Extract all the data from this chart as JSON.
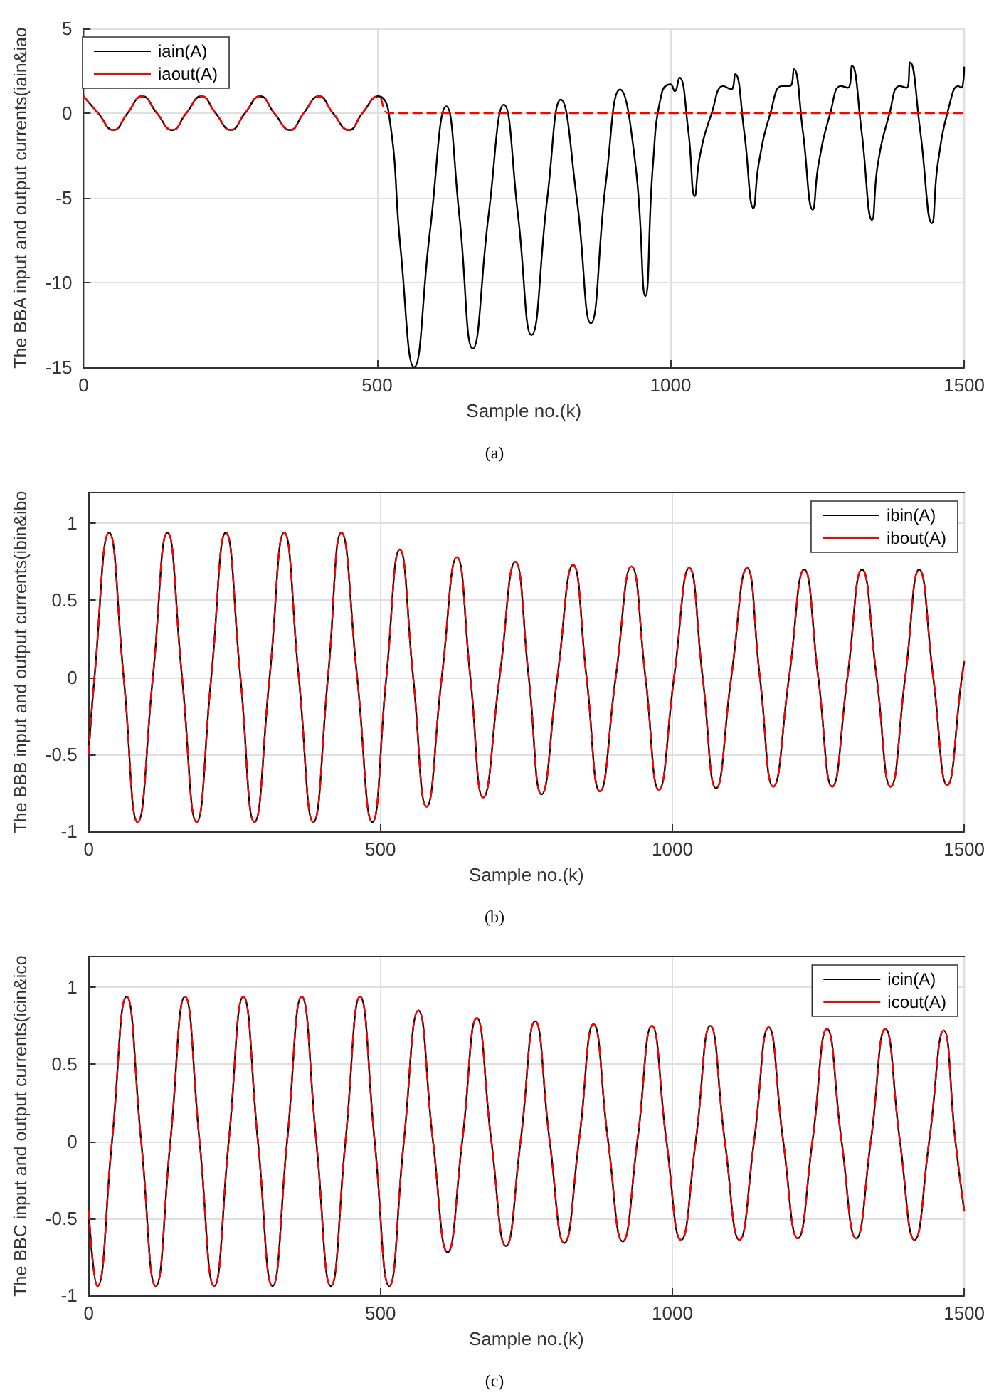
{
  "chart_data": [
    {
      "type": "line",
      "xlabel": "Sample no.(k)",
      "ylabel": "The BBA input and output currents(iain&iao",
      "annotations": [
        "(a)"
      ],
      "xlim": [
        0,
        1500
      ],
      "xticks": [
        0,
        500,
        1000,
        1500
      ],
      "ylim": [
        -15,
        5
      ],
      "yticks": [
        -15,
        -10,
        -5,
        0,
        5
      ],
      "grid": true,
      "legend": "top left",
      "marker": "none",
      "series": [
        {
          "name": "iain(A)",
          "color": "#000000",
          "line_style": "solid",
          "x": [
            0,
            25,
            51,
            75,
            100,
            125,
            151,
            175,
            201,
            225,
            251,
            275,
            301,
            325,
            352,
            375,
            401,
            425,
            452,
            475,
            502,
            520,
            540,
            563,
            590,
            618,
            640,
            663,
            690,
            716,
            740,
            763,
            790,
            813,
            840,
            864,
            890,
            914,
            940,
            957,
            970,
            985,
            1000,
            1007,
            1015,
            1030,
            1041,
            1050,
            1070,
            1090,
            1103,
            1110,
            1125,
            1141,
            1150,
            1170,
            1190,
            1203,
            1210,
            1225,
            1242,
            1252,
            1272,
            1290,
            1302,
            1309,
            1325,
            1343,
            1353,
            1373,
            1390,
            1402,
            1408,
            1425,
            1445,
            1455,
            1475,
            1490,
            1495,
            1500
          ],
          "values": [
            1,
            0,
            -1,
            0,
            1,
            0,
            -1,
            0,
            1,
            0,
            -1,
            0,
            1,
            0,
            -1,
            0,
            1,
            0,
            -1,
            0,
            1,
            0,
            -8,
            -15,
            -7,
            0.4,
            -6,
            -13.9,
            -6,
            0.5,
            -6,
            -13.1,
            -5,
            0.8,
            -5,
            -12.4,
            -4,
            1.4,
            -3,
            -10.8,
            -3,
            1.2,
            1.7,
            1.3,
            2.1,
            -1,
            -4.9,
            -2.5,
            0,
            1.6,
            1.4,
            2.3,
            -1,
            -5.6,
            -3,
            0,
            1.6,
            1.6,
            2.6,
            -1,
            -5.7,
            -3,
            0,
            1.6,
            1.5,
            2.8,
            -1,
            -6.3,
            -3,
            0,
            1.6,
            1.5,
            3.0,
            -1,
            -6.5,
            -3,
            0.5,
            1.6,
            1.5,
            2.7
          ]
        },
        {
          "name": "iaout(A)",
          "color": "#ff0000",
          "line_style": "dashed",
          "x": [
            0,
            25,
            51,
            75,
            100,
            125,
            151,
            175,
            201,
            225,
            251,
            275,
            301,
            325,
            352,
            375,
            401,
            425,
            452,
            475,
            502,
            520,
            600,
            700,
            800,
            900,
            1000,
            1100,
            1200,
            1300,
            1400,
            1500
          ],
          "values": [
            1,
            0,
            -1,
            0,
            1,
            0,
            -1,
            0,
            1,
            0,
            -1,
            0,
            1,
            0,
            -1,
            0,
            1,
            0,
            -1,
            0,
            1,
            0,
            0,
            0,
            0,
            0,
            0,
            0,
            0,
            0,
            0,
            0
          ]
        }
      ]
    },
    {
      "type": "line",
      "xlabel": "Sample no.(k)",
      "ylabel": "The BBB input and output currents(ibin&ibo",
      "annotations": [
        "(b)"
      ],
      "xlim": [
        0,
        1500
      ],
      "xticks": [
        0,
        500,
        1000,
        1500
      ],
      "ylim": [
        -1,
        1.2
      ],
      "yticks": [
        -1,
        -0.5,
        0,
        0.5,
        1
      ],
      "grid": true,
      "legend": "top right",
      "marker": "none",
      "series": [
        {
          "name": "ibin(A)",
          "color": "#000000",
          "line_style": "solid",
          "x": [
            0,
            10,
            35,
            60,
            84,
            110,
            135,
            160,
            185,
            210,
            235,
            260,
            284,
            310,
            335,
            360,
            385,
            410,
            433,
            460,
            486,
            510,
            533,
            556,
            579,
            605,
            631,
            654,
            676,
            704,
            731,
            754,
            776,
            803,
            830,
            853,
            876,
            903,
            930,
            954,
            977,
            1003,
            1029,
            1052,
            1075,
            1101,
            1128,
            1150,
            1173,
            1200,
            1226,
            1250,
            1274,
            1300,
            1325,
            1350,
            1374,
            1399,
            1423,
            1447,
            1471,
            1496,
            1500
          ],
          "values": [
            -0.5,
            0,
            0.94,
            0,
            -0.94,
            0,
            0.94,
            0,
            -0.94,
            0,
            0.94,
            0,
            -0.94,
            0,
            0.94,
            0,
            -0.94,
            0,
            0.94,
            0,
            -0.94,
            0,
            0.83,
            0,
            -0.84,
            0,
            0.78,
            0,
            -0.78,
            0,
            0.75,
            0,
            -0.76,
            0,
            0.73,
            0,
            -0.74,
            0,
            0.72,
            0,
            -0.73,
            0,
            0.71,
            0,
            -0.72,
            0,
            0.71,
            0,
            -0.71,
            0,
            0.7,
            0,
            -0.71,
            0,
            0.7,
            0,
            -0.71,
            0,
            0.7,
            0,
            -0.7,
            0,
            0.1
          ]
        },
        {
          "name": "ibout(A)",
          "color": "#ff0000",
          "line_style": "dashed",
          "x": [
            0,
            10,
            35,
            60,
            84,
            110,
            135,
            160,
            185,
            210,
            235,
            260,
            284,
            310,
            335,
            360,
            385,
            410,
            433,
            460,
            486,
            510,
            533,
            556,
            579,
            605,
            631,
            654,
            676,
            704,
            731,
            754,
            776,
            803,
            830,
            853,
            876,
            903,
            930,
            954,
            977,
            1003,
            1029,
            1052,
            1075,
            1101,
            1128,
            1150,
            1173,
            1200,
            1226,
            1250,
            1274,
            1300,
            1325,
            1350,
            1374,
            1399,
            1423,
            1447,
            1471,
            1496,
            1500
          ],
          "values": [
            -0.5,
            0,
            0.94,
            0,
            -0.94,
            0,
            0.94,
            0,
            -0.94,
            0,
            0.94,
            0,
            -0.94,
            0,
            0.94,
            0,
            -0.94,
            0,
            0.94,
            0,
            -0.94,
            0,
            0.83,
            0,
            -0.84,
            0,
            0.78,
            0,
            -0.78,
            0,
            0.75,
            0,
            -0.76,
            0,
            0.73,
            0,
            -0.74,
            0,
            0.72,
            0,
            -0.73,
            0,
            0.71,
            0,
            -0.72,
            0,
            0.71,
            0,
            -0.71,
            0,
            0.7,
            0,
            -0.71,
            0,
            0.7,
            0,
            -0.71,
            0,
            0.7,
            0,
            -0.7,
            0,
            0.1
          ]
        }
      ]
    },
    {
      "type": "line",
      "xlabel": "Sample no.(k)",
      "ylabel": "The BBC input and output currents(icin&ico",
      "annotations": [
        "(c)"
      ],
      "xlim": [
        0,
        1500
      ],
      "xticks": [
        0,
        500,
        1000,
        1500
      ],
      "ylim": [
        -1,
        1.2
      ],
      "yticks": [
        -1,
        -0.5,
        0,
        0.5,
        1
      ],
      "grid": true,
      "legend": "top right",
      "marker": "none",
      "series": [
        {
          "name": "icin(A)",
          "color": "#000000",
          "line_style": "solid",
          "x": [
            0,
            15,
            40,
            65,
            90,
            115,
            140,
            165,
            190,
            215,
            240,
            265,
            290,
            315,
            340,
            365,
            390,
            415,
            440,
            465,
            490,
            515,
            540,
            565,
            590,
            615,
            640,
            665,
            690,
            715,
            740,
            765,
            790,
            815,
            840,
            865,
            890,
            915,
            940,
            965,
            990,
            1015,
            1040,
            1065,
            1090,
            1115,
            1140,
            1165,
            1190,
            1215,
            1240,
            1265,
            1290,
            1315,
            1340,
            1365,
            1390,
            1415,
            1440,
            1465,
            1485,
            1500
          ],
          "values": [
            -0.45,
            -0.94,
            0,
            0.94,
            0,
            -0.94,
            0,
            0.94,
            0,
            -0.94,
            0,
            0.94,
            0,
            -0.94,
            0,
            0.94,
            0,
            -0.94,
            0,
            0.94,
            0,
            -0.94,
            0,
            0.85,
            0,
            -0.72,
            0,
            0.8,
            0,
            -0.68,
            0,
            0.78,
            0,
            -0.66,
            0,
            0.76,
            0,
            -0.65,
            0,
            0.75,
            0,
            -0.64,
            0,
            0.75,
            0,
            -0.64,
            0,
            0.74,
            0,
            -0.63,
            0,
            0.73,
            0,
            -0.63,
            0,
            0.73,
            0,
            -0.64,
            0,
            0.72,
            0,
            -0.45
          ]
        },
        {
          "name": "icout(A)",
          "color": "#ff0000",
          "line_style": "dashed",
          "x": [
            0,
            15,
            40,
            65,
            90,
            115,
            140,
            165,
            190,
            215,
            240,
            265,
            290,
            315,
            340,
            365,
            390,
            415,
            440,
            465,
            490,
            515,
            540,
            565,
            590,
            615,
            640,
            665,
            690,
            715,
            740,
            765,
            790,
            815,
            840,
            865,
            890,
            915,
            940,
            965,
            990,
            1015,
            1040,
            1065,
            1090,
            1115,
            1140,
            1165,
            1190,
            1215,
            1240,
            1265,
            1290,
            1315,
            1340,
            1365,
            1390,
            1415,
            1440,
            1465,
            1485,
            1500
          ],
          "values": [
            -0.45,
            -0.94,
            0,
            0.94,
            0,
            -0.94,
            0,
            0.94,
            0,
            -0.94,
            0,
            0.94,
            0,
            -0.94,
            0,
            0.94,
            0,
            -0.94,
            0,
            0.94,
            0,
            -0.94,
            0,
            0.85,
            0,
            -0.72,
            0,
            0.8,
            0,
            -0.68,
            0,
            0.78,
            0,
            -0.66,
            0,
            0.76,
            0,
            -0.65,
            0,
            0.75,
            0,
            -0.64,
            0,
            0.75,
            0,
            -0.64,
            0,
            0.74,
            0,
            -0.63,
            0,
            0.73,
            0,
            -0.63,
            0,
            0.73,
            0,
            -0.64,
            0,
            0.72,
            0,
            -0.45
          ]
        }
      ]
    }
  ]
}
